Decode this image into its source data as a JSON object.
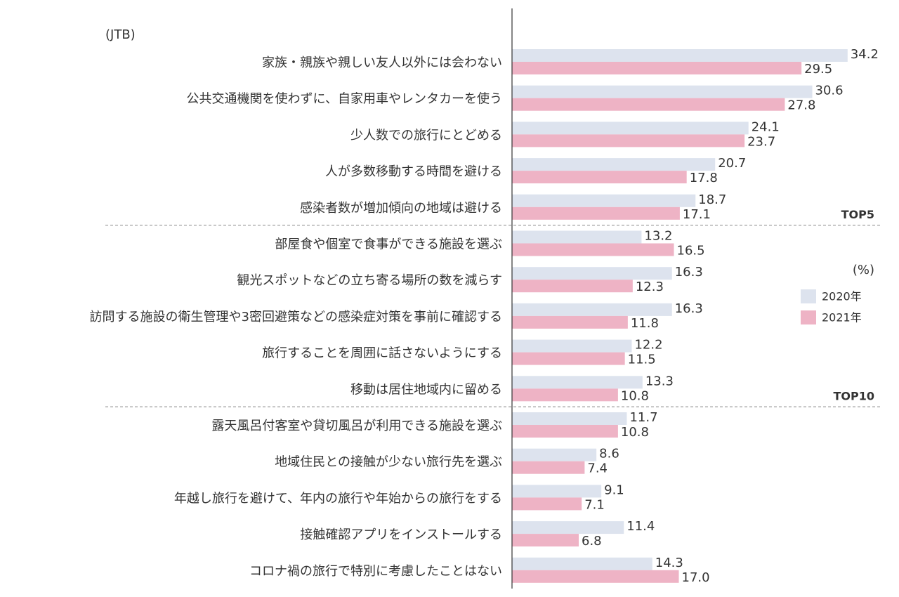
{
  "chart_data": {
    "type": "bar",
    "orientation": "horizontal",
    "source_note": "(JTB)",
    "unit_label": "(%)",
    "categories": [
      "家族・親族や親しい友人以外には会わない",
      "公共交通機関を使わずに、自家用車やレンタカーを使う",
      "少人数での旅行にとどめる",
      "人が多数移動する時間を避ける",
      "感染者数が増加傾向の地域は避ける",
      "部屋食や個室で食事ができる施設を選ぶ",
      "観光スポットなどの立ち寄る場所の数を減らす",
      "訪問する施設の衛生管理や3密回避策などの感染症対策を事前に確認する",
      "旅行することを周囲に話さないようにする",
      "移動は居住地域内に留める",
      "露天風呂付客室や貸切風呂が利用できる施設を選ぶ",
      "地域住民との接触が少ない旅行先を選ぶ",
      "年越し旅行を避けて、年内の旅行や年始からの旅行をする",
      "接触確認アプリをインストールする",
      "コロナ禍の旅行で特別に考慮したことはない"
    ],
    "series": [
      {
        "name": "2020年",
        "color": "#dde3ee",
        "values": [
          34.2,
          30.6,
          24.1,
          20.7,
          18.7,
          13.2,
          16.3,
          16.3,
          12.2,
          13.3,
          11.7,
          8.6,
          9.1,
          11.4,
          14.3
        ],
        "value_labels": [
          "34.2",
          "30.6",
          "24.1",
          "20.7",
          "18.7",
          "13.2",
          "16.3",
          "16.3",
          "12.2",
          "13.3",
          "11.7",
          "8.6",
          "9.1",
          "11.4",
          "14.3"
        ]
      },
      {
        "name": "2021年",
        "color": "#eeb3c5",
        "values": [
          29.5,
          27.8,
          23.7,
          17.8,
          17.1,
          16.5,
          12.3,
          11.8,
          11.5,
          10.8,
          10.8,
          7.4,
          7.1,
          6.8,
          17.0
        ],
        "value_labels": [
          "29.5",
          "27.8",
          "23.7",
          "17.8",
          "17.1",
          "16.5",
          "12.3",
          "11.8",
          "11.5",
          "10.8",
          "10.8",
          "7.4",
          "7.1",
          "6.8",
          "17.0"
        ]
      }
    ],
    "group_labels": [
      "TOP5",
      "TOP10"
    ],
    "xlim": [
      0,
      35
    ]
  }
}
